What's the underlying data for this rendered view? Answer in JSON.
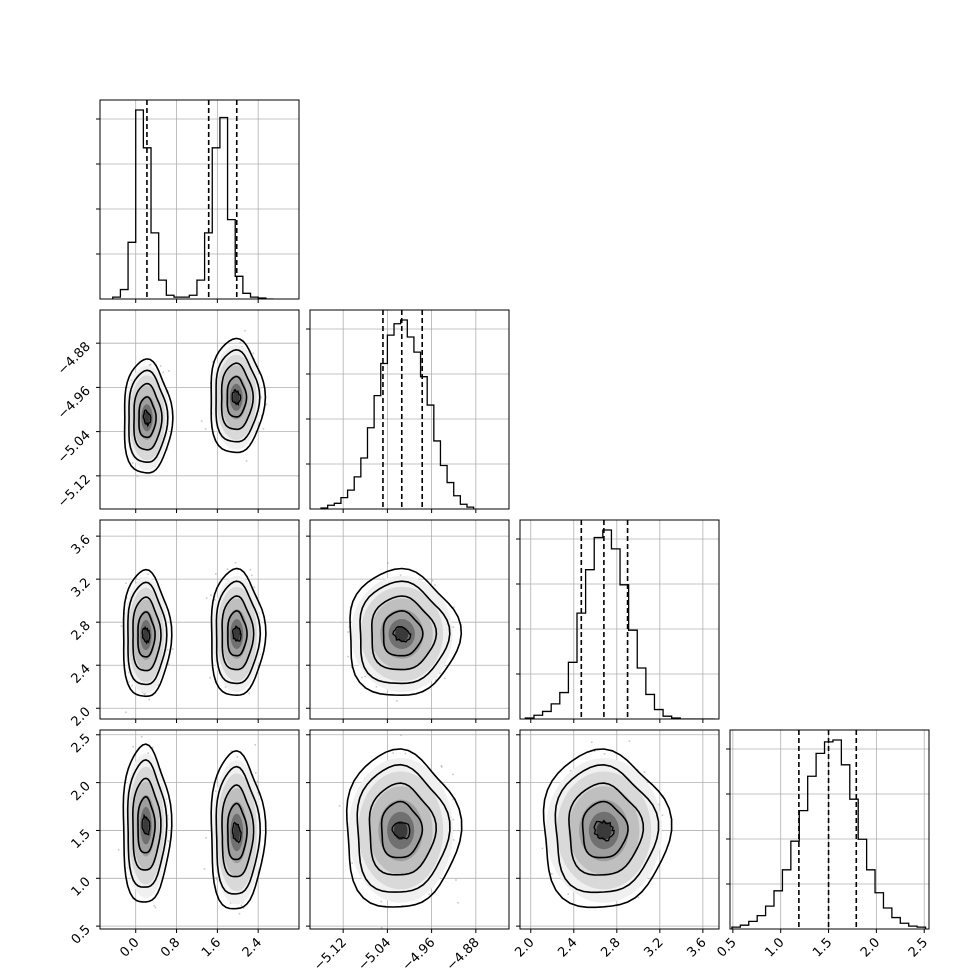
{
  "chart_data": {
    "type": "corner",
    "parameters": 4,
    "axes": [
      {
        "ticks": [
          0.0,
          0.8,
          1.6,
          2.4
        ],
        "tick_labels": [
          "0.0",
          "0.8",
          "1.6",
          "2.4"
        ],
        "range": [
          -0.7,
          3.2
        ]
      },
      {
        "ticks": [
          -5.12,
          -5.04,
          -4.96,
          -4.88
        ],
        "tick_labels": [
          "−5.12",
          "−5.04",
          "−4.96",
          "−4.88"
        ],
        "range": [
          -5.18,
          -4.82
        ]
      },
      {
        "ticks": [
          2.0,
          2.4,
          2.8,
          3.2,
          3.6
        ],
        "tick_labels": [
          "2.0",
          "2.4",
          "2.8",
          "3.2",
          "3.6"
        ],
        "range": [
          1.9,
          3.75
        ]
      },
      {
        "ticks": [
          0.5,
          1.0,
          1.5,
          2.0,
          2.5
        ],
        "tick_labels": [
          "0.5",
          "1.0",
          "1.5",
          "2.0",
          "2.5"
        ],
        "range": [
          0.47,
          2.55
        ]
      }
    ],
    "histograms": [
      {
        "param": 0,
        "bins": [
          -0.45,
          -0.3,
          -0.15,
          0.0,
          0.15,
          0.3,
          0.45,
          0.6,
          0.75,
          0.9,
          1.05,
          1.2,
          1.35,
          1.5,
          1.65,
          1.8,
          1.95,
          2.1,
          2.25,
          2.4,
          2.55,
          2.7
        ],
        "counts": [
          1,
          5,
          30,
          100,
          80,
          35,
          10,
          2,
          1,
          1,
          2,
          10,
          35,
          80,
          96,
          42,
          12,
          3,
          1,
          0.5,
          0
        ],
        "quantiles": [
          0.22,
          1.43,
          1.98
        ]
      },
      {
        "param": 1,
        "bins": [
          -5.16,
          -5.148,
          -5.136,
          -5.124,
          -5.112,
          -5.1,
          -5.088,
          -5.076,
          -5.064,
          -5.052,
          -5.04,
          -5.028,
          -5.016,
          -5.004,
          -4.992,
          -4.98,
          -4.968,
          -4.956,
          -4.944,
          -4.932,
          -4.92,
          -4.908,
          -4.896,
          -4.884
        ],
        "counts": [
          0.5,
          2,
          3,
          6,
          10,
          17,
          27,
          43,
          60,
          77,
          92,
          98,
          100,
          91,
          83,
          70,
          55,
          36,
          23,
          14,
          7,
          2.5,
          1
        ],
        "quantiles": [
          -5.048,
          -5.014,
          -4.977
        ]
      },
      {
        "param": 2,
        "bins": [
          1.95,
          2.03,
          2.11,
          2.19,
          2.27,
          2.35,
          2.43,
          2.51,
          2.59,
          2.67,
          2.75,
          2.83,
          2.91,
          2.99,
          3.07,
          3.15,
          3.23,
          3.31,
          3.39,
          3.47,
          3.55,
          3.63,
          3.71
        ],
        "counts": [
          0.5,
          2,
          4,
          8,
          14,
          30,
          56,
          79,
          96,
          100,
          90,
          71,
          47,
          27,
          13,
          5,
          1.5,
          0.5,
          0,
          0,
          0,
          0
        ],
        "quantiles": [
          2.47,
          2.68,
          2.9
        ]
      },
      {
        "param": 3,
        "bins": [
          0.49,
          0.578,
          0.666,
          0.754,
          0.842,
          0.93,
          1.018,
          1.106,
          1.194,
          1.282,
          1.37,
          1.458,
          1.546,
          1.634,
          1.722,
          1.81,
          1.898,
          1.986,
          2.074,
          2.162,
          2.25,
          2.338,
          2.426,
          2.514
        ],
        "counts": [
          1,
          2,
          4,
          7,
          12,
          20,
          31,
          46,
          62,
          80,
          92,
          98,
          99,
          86,
          68,
          47,
          31,
          19,
          11,
          6,
          3,
          1.5,
          1
        ],
        "quantiles": [
          1.19,
          1.5,
          1.79
        ]
      }
    ],
    "pairs": [
      {
        "x": 0,
        "y": 1,
        "blobs": [
          {
            "cx": 0.22,
            "cy": -5.015,
            "sx": 0.16,
            "sy": 0.035
          },
          {
            "cx": 1.97,
            "cy": -4.978,
            "sx": 0.18,
            "sy": 0.035
          }
        ]
      },
      {
        "x": 0,
        "y": 2,
        "blobs": [
          {
            "cx": 0.2,
            "cy": 2.68,
            "sx": 0.16,
            "sy": 0.2
          },
          {
            "cx": 1.98,
            "cy": 2.69,
            "sx": 0.18,
            "sy": 0.2
          }
        ]
      },
      {
        "x": 1,
        "y": 2,
        "blobs": [
          {
            "cx": -5.014,
            "cy": 2.69,
            "sx": 0.034,
            "sy": 0.2
          }
        ]
      },
      {
        "x": 0,
        "y": 3,
        "blobs": [
          {
            "cx": 0.2,
            "cy": 1.55,
            "sx": 0.16,
            "sy": 0.28
          },
          {
            "cx": 1.98,
            "cy": 1.48,
            "sx": 0.18,
            "sy": 0.28
          }
        ]
      },
      {
        "x": 1,
        "y": 3,
        "blobs": [
          {
            "cx": -5.016,
            "cy": 1.5,
            "sx": 0.035,
            "sy": 0.28
          }
        ]
      },
      {
        "x": 2,
        "y": 3,
        "blobs": [
          {
            "cx": 2.68,
            "cy": 1.5,
            "sx": 0.2,
            "sy": 0.28
          }
        ]
      }
    ],
    "grid": true,
    "title": "",
    "legend": "none"
  }
}
